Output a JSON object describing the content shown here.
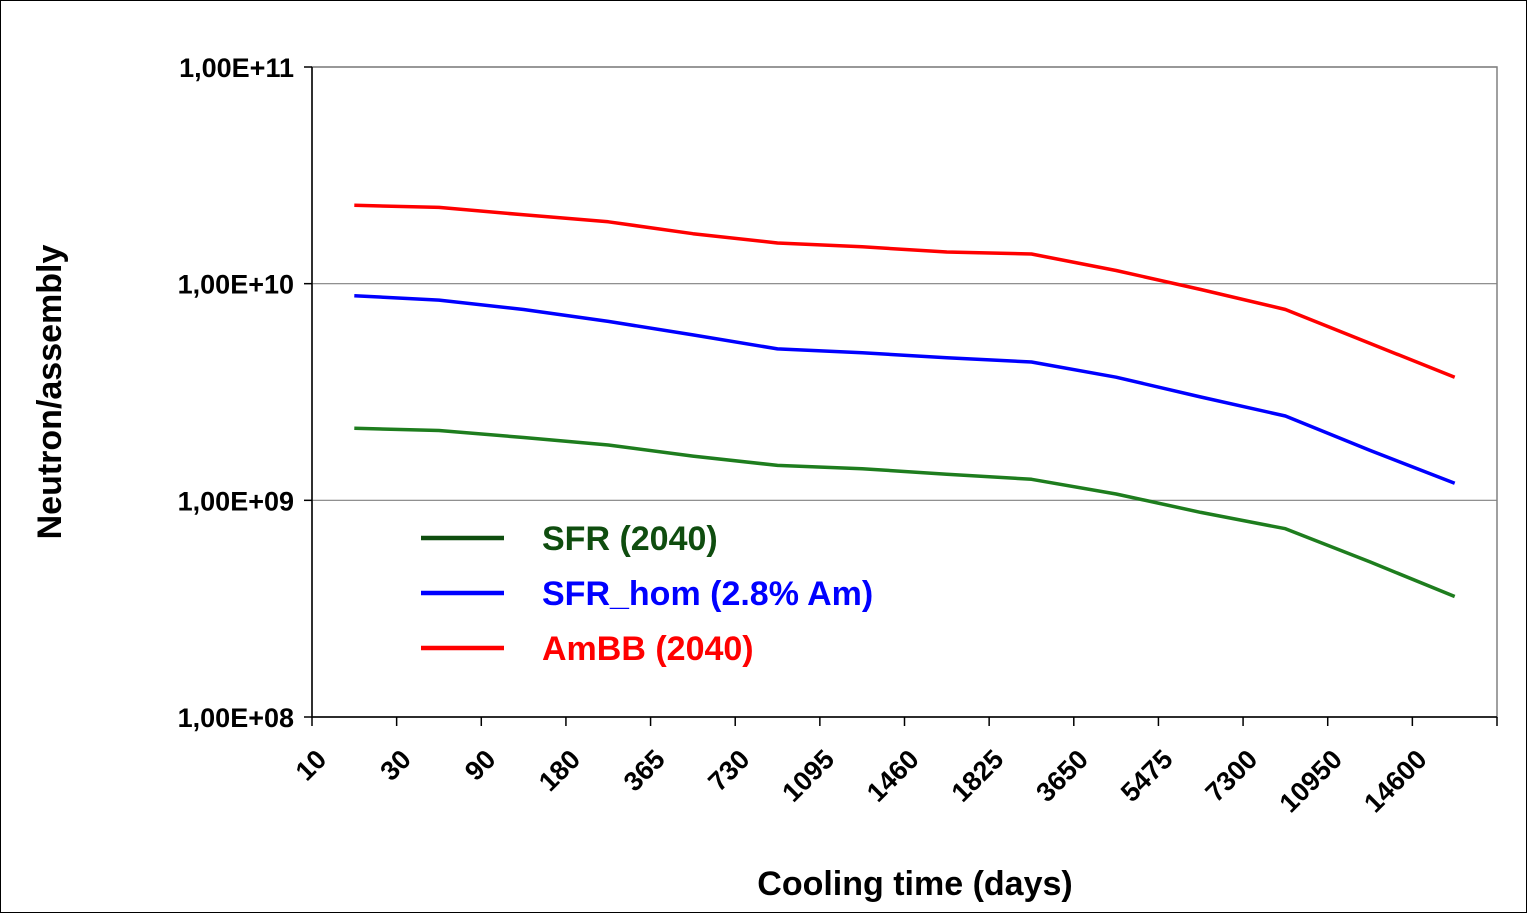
{
  "chart_data": {
    "type": "line",
    "title": "",
    "xlabel": "Cooling time (days)",
    "ylabel": "Neutron/assembly",
    "y_scale": "log",
    "ylim": [
      100000000,
      100000000000
    ],
    "y_ticks": [
      "1,00E+08",
      "1,00E+09",
      "1,00E+10",
      "1,00E+11"
    ],
    "y_tick_values": [
      100000000,
      1000000000,
      10000000000,
      100000000000
    ],
    "categories": [
      "10",
      "30",
      "90",
      "180",
      "365",
      "730",
      "1095",
      "1460",
      "1825",
      "3650",
      "5475",
      "7300",
      "10950",
      "14600"
    ],
    "grid": "horizontal major gridlines",
    "legend_position": "lower-left inside plot",
    "series": [
      {
        "name": "SFR (2040)",
        "color": "#1e7d1e",
        "legend_color": "#0f4d0f",
        "values": [
          2150000000,
          2100000000,
          1950000000,
          1800000000,
          1600000000,
          1450000000,
          1400000000,
          1320000000,
          1250000000,
          1070000000,
          880000000,
          740000000,
          520000000,
          360000000
        ]
      },
      {
        "name": "SFR_hom (2.8% Am)",
        "color": "#0000ff",
        "legend_color": "#0000ff",
        "values": [
          8800000000,
          8400000000,
          7600000000,
          6700000000,
          5800000000,
          5000000000,
          4800000000,
          4550000000,
          4350000000,
          3700000000,
          3000000000,
          2450000000,
          1700000000,
          1200000000
        ]
      },
      {
        "name": "AmBB (2040)",
        "color": "#ff0000",
        "legend_color": "#ff0000",
        "values": [
          23000000000,
          22500000000,
          20800000000,
          19300000000,
          17000000000,
          15400000000,
          14800000000,
          14000000000,
          13700000000,
          11500000000,
          9400000000,
          7600000000,
          5300000000,
          3700000000
        ]
      }
    ]
  }
}
